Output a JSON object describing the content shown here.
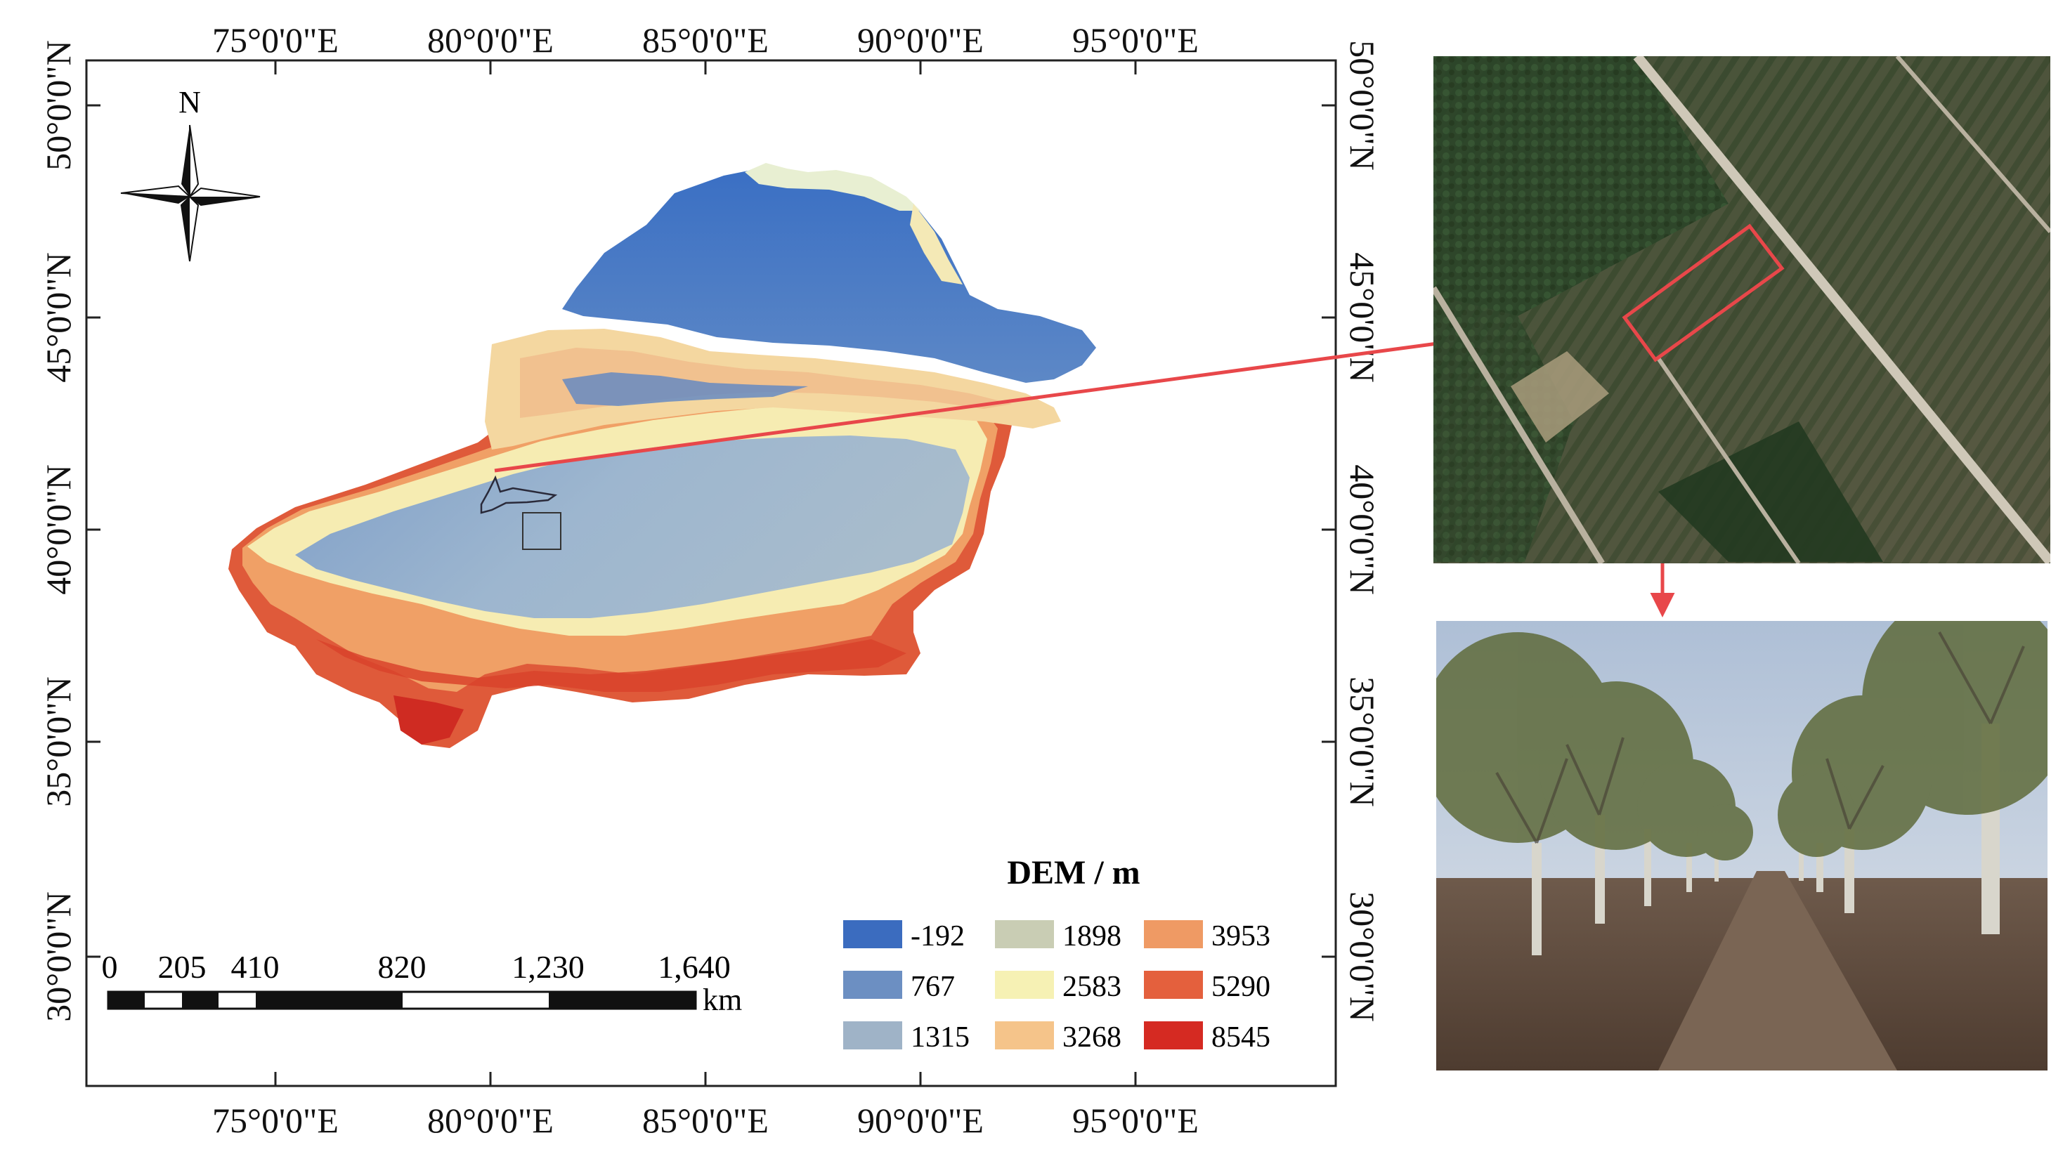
{
  "figure": {
    "lon_labels": [
      "75°0'0\"E",
      "80°0'0\"E",
      "85°0'0\"E",
      "90°0'0\"E",
      "95°0'0\"E"
    ],
    "lat_labels": [
      "50°0'0\"N",
      "45°0'0\"N",
      "40°0'0\"N",
      "35°0'0\"N",
      "30°0'0\"N"
    ],
    "north_label": "N",
    "legend": {
      "title": "DEM / m",
      "classes": [
        {
          "label": "-192",
          "color": "#3b6cbf"
        },
        {
          "label": "767",
          "color": "#6c8fc2"
        },
        {
          "label": "1315",
          "color": "#9fb3c7"
        },
        {
          "label": "1898",
          "color": "#c9cdb4"
        },
        {
          "label": "2583",
          "color": "#f6f1b4"
        },
        {
          "label": "3268",
          "color": "#f5c48a"
        },
        {
          "label": "3953",
          "color": "#ef9a64"
        },
        {
          "label": "5290",
          "color": "#e4603d"
        },
        {
          "label": "8545",
          "color": "#d52a22"
        }
      ]
    },
    "scale_bar": {
      "ticks": [
        "0",
        "205",
        "410",
        "820",
        "1,230",
        "1,640"
      ],
      "unit": "km"
    },
    "colors": {
      "frame": "#222222",
      "highlight_arrow": "#e8474a"
    }
  }
}
